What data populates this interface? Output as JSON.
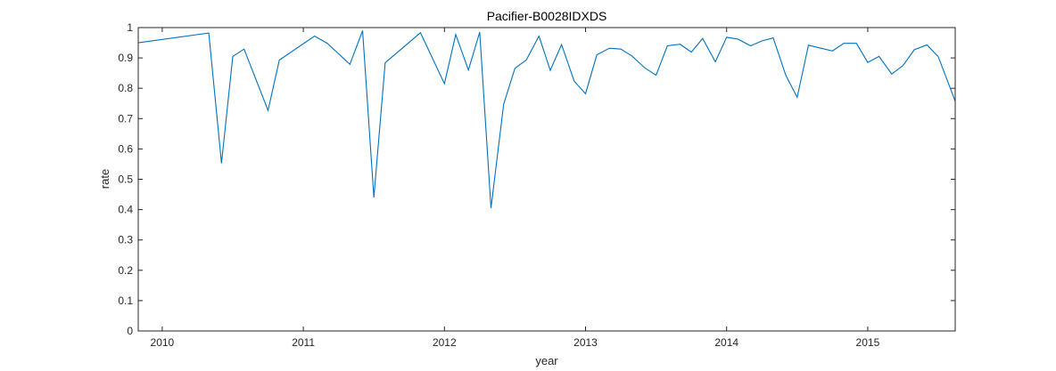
{
  "chart_data": {
    "type": "line",
    "title": "Pacifier-B0028IDXDS",
    "xlabel": "year",
    "ylabel": "rate",
    "xlim": [
      2009.83,
      2015.62
    ],
    "ylim": [
      0,
      1
    ],
    "x_ticks": [
      2010,
      2011,
      2012,
      2013,
      2014,
      2015
    ],
    "y_ticks": [
      0,
      0.1,
      0.2,
      0.3,
      0.4,
      0.5,
      0.6,
      0.7,
      0.8,
      0.9,
      1
    ],
    "y_tick_labels": [
      "0",
      "0.1",
      "0.2",
      "0.3",
      "0.4",
      "0.5",
      "0.6",
      "0.7",
      "0.8",
      "0.9",
      "1"
    ],
    "grid": false,
    "color": "#0072BD",
    "series": [
      {
        "x": [
          2009.83,
          2010.33,
          2010.42,
          2010.5,
          2010.58,
          2010.75,
          2010.83,
          2011.08,
          2011.17,
          2011.33,
          2011.42,
          2011.5,
          2011.58,
          2011.83,
          2012.0,
          2012.08,
          2012.17,
          2012.25,
          2012.33,
          2012.42,
          2012.5,
          2012.58,
          2012.67,
          2012.75,
          2012.83,
          2012.92,
          2013.0,
          2013.08,
          2013.17,
          2013.25,
          2013.33,
          2013.42,
          2013.5,
          2013.58,
          2013.67,
          2013.75,
          2013.83,
          2013.92,
          2014.0,
          2014.08,
          2014.17,
          2014.25,
          2014.33,
          2014.42,
          2014.5,
          2014.58,
          2014.75,
          2014.83,
          2014.92,
          2015.0,
          2015.08,
          2015.17,
          2015.25,
          2015.33,
          2015.42,
          2015.5,
          2015.62
        ],
        "values": [
          0.95,
          0.982,
          0.553,
          0.905,
          0.929,
          0.727,
          0.893,
          0.972,
          0.948,
          0.879,
          0.99,
          0.44,
          0.884,
          0.983,
          0.815,
          0.977,
          0.86,
          0.985,
          0.405,
          0.748,
          0.866,
          0.893,
          0.972,
          0.859,
          0.944,
          0.823,
          0.782,
          0.91,
          0.932,
          0.929,
          0.906,
          0.867,
          0.843,
          0.94,
          0.945,
          0.919,
          0.964,
          0.887,
          0.968,
          0.962,
          0.94,
          0.956,
          0.966,
          0.842,
          0.77,
          0.942,
          0.923,
          0.948,
          0.948,
          0.885,
          0.905,
          0.847,
          0.875,
          0.927,
          0.943,
          0.904,
          0.757
        ]
      }
    ]
  }
}
